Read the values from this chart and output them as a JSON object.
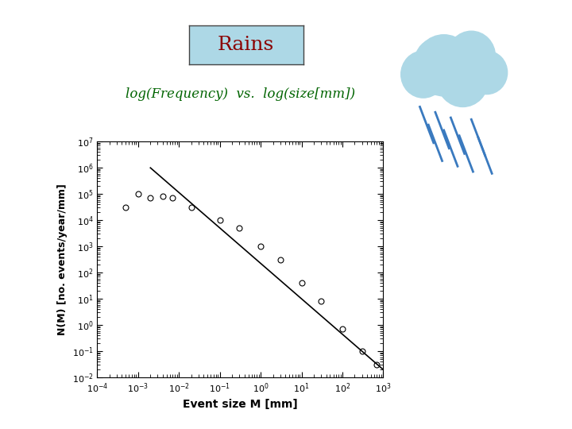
{
  "title": "Rains",
  "subtitle_italic": "log(Frequency)  vs.  log(size[mm])",
  "xlabel": "Event size M [mm]",
  "ylabel": "N(M) [no. events/year/mm]",
  "xlim": [
    0.0001,
    1000.0
  ],
  "ylim": [
    0.01,
    10000000.0
  ],
  "data_x": [
    0.0005,
    0.001,
    0.002,
    0.004,
    0.007,
    0.02,
    0.1,
    0.3,
    1.0,
    3.0,
    10.0,
    30.0,
    100.0,
    300.0,
    700.0
  ],
  "data_y": [
    30000.0,
    100000.0,
    70000.0,
    80000.0,
    70000.0,
    30000.0,
    10000.0,
    5000.0,
    1000.0,
    300.0,
    40.0,
    8.0,
    0.7,
    0.1,
    0.03
  ],
  "fit_x": [
    0.002,
    1000.0
  ],
  "fit_y": [
    1000000.0,
    0.02
  ],
  "title_color": "#8b0000",
  "title_box_color": "#add8e6",
  "subtitle_color": "#006400",
  "line_color": "#000000",
  "marker_color": "#000000",
  "background_color": "#ffffff",
  "cloud_circles": [
    [
      0.42,
      0.78,
      0.17
    ],
    [
      0.58,
      0.83,
      0.14
    ],
    [
      0.3,
      0.73,
      0.13
    ],
    [
      0.53,
      0.7,
      0.15
    ],
    [
      0.38,
      0.8,
      0.13
    ],
    [
      0.67,
      0.74,
      0.12
    ]
  ],
  "rain_lines": [
    [
      0.28,
      0.36,
      0.55,
      0.35
    ],
    [
      0.37,
      0.45,
      0.52,
      0.32
    ],
    [
      0.46,
      0.54,
      0.49,
      0.29
    ],
    [
      0.33,
      0.41,
      0.45,
      0.25
    ],
    [
      0.42,
      0.5,
      0.42,
      0.22
    ],
    [
      0.51,
      0.59,
      0.39,
      0.19
    ],
    [
      0.58,
      0.66,
      0.48,
      0.28
    ],
    [
      0.62,
      0.7,
      0.38,
      0.18
    ]
  ]
}
